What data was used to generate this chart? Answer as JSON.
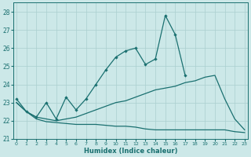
{
  "xlabel": "Humidex (Indice chaleur)",
  "bg_color": "#cce8e8",
  "line_color": "#1a7070",
  "grid_color": "#aacfcf",
  "ylim": [
    21,
    28.5
  ],
  "xlim": [
    -0.3,
    23.3
  ],
  "yticks": [
    21,
    22,
    23,
    24,
    25,
    26,
    27,
    28
  ],
  "xticks": [
    0,
    1,
    2,
    3,
    4,
    5,
    6,
    7,
    8,
    9,
    10,
    11,
    12,
    13,
    14,
    15,
    16,
    17,
    18,
    19,
    20,
    21,
    22,
    23
  ],
  "series_marker_x": [
    0,
    1,
    2,
    3,
    4,
    5,
    6,
    7,
    8,
    9,
    10,
    11,
    12,
    13,
    14,
    15,
    16,
    17,
    18,
    19,
    20,
    21,
    22,
    23
  ],
  "series_marker_y": [
    23.2,
    22.5,
    22.2,
    23.0,
    22.1,
    23.3,
    22.6,
    23.2,
    24.0,
    24.8,
    25.5,
    25.85,
    26.0,
    25.1,
    25.4,
    27.8,
    26.75,
    24.5,
    null,
    null,
    null,
    null,
    null,
    null
  ],
  "series_smooth_x": [
    0,
    1,
    2,
    3,
    4,
    5,
    6,
    7,
    8,
    9,
    10,
    11,
    12,
    13,
    14,
    15,
    16,
    17,
    18,
    19,
    20,
    21,
    22,
    23
  ],
  "series_smooth_y": [
    23.0,
    22.5,
    22.2,
    22.1,
    22.0,
    22.1,
    22.2,
    22.4,
    22.6,
    22.8,
    23.0,
    23.1,
    23.3,
    23.5,
    23.7,
    23.8,
    23.9,
    24.1,
    24.2,
    24.4,
    24.5,
    23.2,
    22.1,
    21.5
  ],
  "series_flat_x": [
    0,
    1,
    2,
    3,
    4,
    5,
    6,
    7,
    8,
    9,
    10,
    11,
    12,
    13,
    14,
    15,
    16,
    17,
    18,
    19,
    20,
    21,
    22,
    23
  ],
  "series_flat_y": [
    23.0,
    22.5,
    22.1,
    21.95,
    21.9,
    21.85,
    21.8,
    21.8,
    21.8,
    21.75,
    21.7,
    21.7,
    21.65,
    21.55,
    21.5,
    21.5,
    21.5,
    21.5,
    21.5,
    21.5,
    21.5,
    21.5,
    21.4,
    21.35
  ]
}
